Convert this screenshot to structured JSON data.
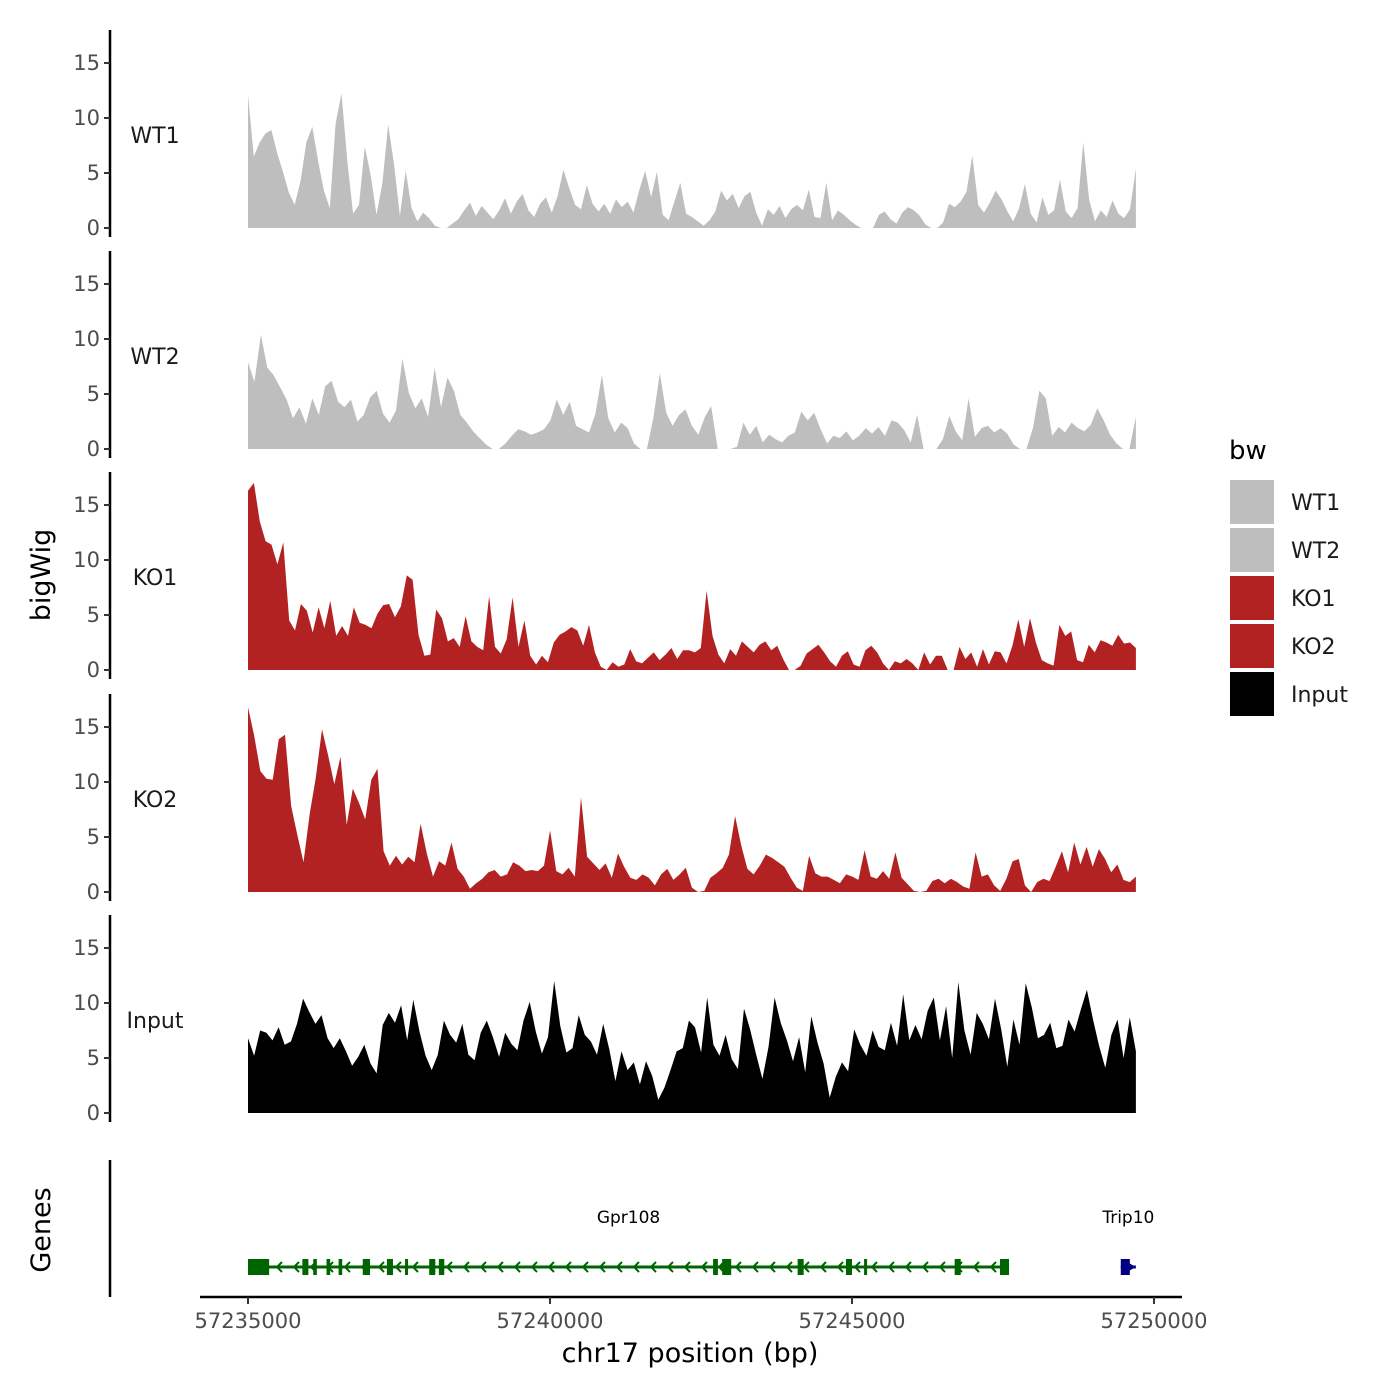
{
  "chart_data": {
    "type": "area",
    "y_axis_title": "bigWig",
    "genes_axis_title": "Genes",
    "x_axis_title": "chr17 position (bp)",
    "x_range": [
      57235000,
      57249700
    ],
    "x_ticks": [
      "57235000",
      "57240000",
      "57245000",
      "57250000"
    ],
    "x_tick_values": [
      57235000,
      57240000,
      57245000,
      57250000
    ],
    "y_range": [
      0,
      18
    ],
    "y_ticks": [
      "0",
      "5",
      "10",
      "15"
    ],
    "y_tick_values": [
      0,
      5,
      10,
      15
    ],
    "legend": {
      "title": "bw",
      "position": "right",
      "entries": [
        {
          "label": "WT1",
          "color": "#bebebe"
        },
        {
          "label": "WT2",
          "color": "#bebebe"
        },
        {
          "label": "KO1",
          "color": "#b22222"
        },
        {
          "label": "KO2",
          "color": "#b22222"
        },
        {
          "label": "Input",
          "color": "#000000"
        }
      ]
    },
    "tracks": [
      {
        "name": "WT1",
        "color": "#bebebe",
        "values": [
          12.1,
          6.5,
          7.8,
          8.6,
          8.9,
          6.8,
          5.1,
          3.2,
          2.1,
          4.3,
          7.8,
          9.2,
          6.1,
          3.4,
          1.8,
          9.5,
          12.2,
          6.1,
          1.3,
          2.1,
          7.4,
          4.8,
          1.2,
          4.1,
          9.4,
          5.8,
          1.1,
          5.2,
          1.8,
          0.6,
          1.4,
          0.9,
          0.2,
          0,
          0,
          0.4,
          0.8,
          1.6,
          2.3,
          1.1,
          2.0,
          1.4,
          0.8,
          1.6,
          2.7,
          1.3,
          2.4,
          3.1,
          1.6,
          1.0,
          2.2,
          2.8,
          1.4,
          2.9,
          5.3,
          3.6,
          2.1,
          1.7,
          3.9,
          2.2,
          1.5,
          2.2,
          1.3,
          2.6,
          1.9,
          2.4,
          1.4,
          3.5,
          5.2,
          2.8,
          5.1,
          1.2,
          0.7,
          2.4,
          4.1,
          1.3,
          1.0,
          0.6,
          0.2,
          0.7,
          1.5,
          3.4,
          2.5,
          3.1,
          1.8,
          2.9,
          3.3,
          1.4,
          0.2,
          1.7,
          1.2,
          2.0,
          0.9,
          1.7,
          2.1,
          1.6,
          3.5,
          1.0,
          0.9,
          4.1,
          0.7,
          1.6,
          1.2,
          0.7,
          0.3,
          0,
          0,
          0,
          1.2,
          1.5,
          0.8,
          0.4,
          1.4,
          1.9,
          1.6,
          1.1,
          0.3,
          0,
          0,
          0.5,
          2.2,
          1.9,
          2.4,
          3.3,
          6.6,
          2.1,
          1.4,
          2.3,
          3.4,
          2.6,
          1.5,
          0.6,
          1.8,
          4.0,
          1.3,
          0.5,
          2.8,
          1.2,
          1.6,
          4.4,
          1.5,
          0.9,
          1.8,
          7.8,
          2.6,
          0.6,
          1.6,
          1.0,
          2.5,
          1.3,
          0.9,
          1.7,
          5.4
        ]
      },
      {
        "name": "WT2",
        "color": "#bebebe",
        "values": [
          7.9,
          6.1,
          10.4,
          7.4,
          6.7,
          5.6,
          4.5,
          2.8,
          3.8,
          2.3,
          4.6,
          3.1,
          5.7,
          6.2,
          4.3,
          3.8,
          4.5,
          2.5,
          3.1,
          4.7,
          5.3,
          3.2,
          2.4,
          3.5,
          8.2,
          5.1,
          3.7,
          4.6,
          2.9,
          7.4,
          3.8,
          6.5,
          5.3,
          3.1,
          2.4,
          1.6,
          1.0,
          0.4,
          0,
          0,
          0.5,
          1.2,
          1.8,
          1.6,
          1.3,
          1.5,
          1.8,
          2.6,
          4.5,
          3.1,
          4.3,
          2.1,
          1.8,
          1.5,
          3.2,
          6.7,
          2.8,
          1.5,
          2.4,
          1.9,
          0.5,
          0,
          0,
          2.8,
          6.9,
          3.3,
          2.1,
          3.1,
          3.6,
          2.1,
          1.3,
          2.9,
          3.9,
          0,
          0,
          0,
          0.2,
          2.4,
          1.3,
          2.1,
          0.6,
          1.3,
          0.9,
          0.6,
          1.2,
          1.5,
          3.4,
          2.6,
          3.3,
          1.8,
          0.5,
          1.2,
          1.0,
          1.6,
          0.8,
          1.2,
          1.9,
          1.4,
          2.0,
          1.2,
          2.6,
          2.4,
          1.7,
          0.6,
          3.1,
          0,
          0,
          0,
          0.9,
          3.0,
          1.6,
          0.8,
          4.6,
          1.1,
          1.9,
          2.1,
          1.5,
          1.9,
          1.4,
          0.4,
          0,
          0,
          1.9,
          5.3,
          4.6,
          1.2,
          2.0,
          1.5,
          2.4,
          1.9,
          1.6,
          2.2,
          3.7,
          2.6,
          1.3,
          0.5,
          0,
          0,
          2.9
        ]
      },
      {
        "name": "KO1",
        "color": "#b22222",
        "values": [
          16.3,
          17.0,
          13.5,
          11.7,
          11.4,
          9.6,
          11.6,
          4.5,
          3.6,
          6.0,
          5.4,
          3.4,
          5.7,
          3.8,
          6.3,
          3.1,
          4.0,
          3.1,
          5.7,
          4.3,
          4.1,
          3.8,
          5.1,
          5.9,
          6.0,
          4.8,
          5.8,
          8.6,
          8.2,
          3.2,
          1.3,
          1.4,
          5.5,
          4.7,
          2.6,
          2.9,
          2.1,
          4.9,
          2.6,
          2.1,
          1.8,
          6.7,
          2.1,
          1.5,
          2.8,
          6.6,
          2.1,
          4.5,
          1.3,
          0.5,
          1.3,
          0.7,
          2.5,
          3.2,
          3.5,
          3.9,
          3.6,
          2.2,
          4.1,
          1.6,
          0.3,
          0,
          0.7,
          0.3,
          0.5,
          1.9,
          0.8,
          0.6,
          1.1,
          1.6,
          0.9,
          1.4,
          2.0,
          1.0,
          1.8,
          1.8,
          1.6,
          2.0,
          7.2,
          3.1,
          1.4,
          0.6,
          1.9,
          1.3,
          2.6,
          2.1,
          1.6,
          2.3,
          2.6,
          1.8,
          2.2,
          1.0,
          0,
          0,
          0.4,
          1.5,
          1.9,
          2.3,
          1.6,
          0.8,
          0.3,
          1.3,
          1.7,
          0.5,
          0.3,
          1.8,
          2.2,
          1.6,
          0.6,
          0,
          0.8,
          0.6,
          1.0,
          0.6,
          0,
          1.6,
          0.5,
          1.3,
          1.3,
          0,
          0,
          2.1,
          1.0,
          1.6,
          0.3,
          1.9,
          0.5,
          1.7,
          1.6,
          0.6,
          2.2,
          4.6,
          2.1,
          4.7,
          2.5,
          0.9,
          0.6,
          0.4,
          4.1,
          3.1,
          3.5,
          0.9,
          0.7,
          2.3,
          1.6,
          2.7,
          2.5,
          2.2,
          3.2,
          2.4,
          2.5,
          2.0
        ]
      },
      {
        "name": "KO2",
        "color": "#b22222",
        "values": [
          16.8,
          14.2,
          11.0,
          10.3,
          10.2,
          13.9,
          14.3,
          7.8,
          5.2,
          2.7,
          7.1,
          10.4,
          14.8,
          12.4,
          9.8,
          12.3,
          6.1,
          9.4,
          8.1,
          6.6,
          10.2,
          11.2,
          3.7,
          2.4,
          3.3,
          2.5,
          3.2,
          2.7,
          6.2,
          3.5,
          1.4,
          2.8,
          2.4,
          4.5,
          2.1,
          1.4,
          0.3,
          0.8,
          1.2,
          1.8,
          2.0,
          1.4,
          1.6,
          2.7,
          2.4,
          1.9,
          2.0,
          1.9,
          2.4,
          5.6,
          1.9,
          1.6,
          2.2,
          1.4,
          8.6,
          3.2,
          2.6,
          2.0,
          2.6,
          1.3,
          3.5,
          2.3,
          1.3,
          1.1,
          1.6,
          1.3,
          0.6,
          1.6,
          2.1,
          1.1,
          1.6,
          2.2,
          0.4,
          0,
          0.1,
          1.3,
          1.7,
          2.2,
          3.4,
          6.9,
          4.2,
          2.1,
          1.6,
          2.4,
          3.4,
          3.1,
          2.7,
          2.3,
          1.3,
          0.4,
          0.1,
          3.3,
          1.7,
          1.4,
          1.4,
          1.1,
          0.8,
          1.6,
          1.4,
          1.1,
          3.8,
          1.4,
          1.2,
          1.9,
          1.2,
          3.6,
          1.3,
          0.7,
          0.1,
          0,
          0.1,
          1.0,
          1.2,
          0.8,
          1.2,
          0.9,
          0.5,
          0.3,
          3.6,
          1.4,
          1.6,
          0.6,
          0.1,
          1.2,
          2.8,
          3.0,
          0.6,
          0,
          0.9,
          1.2,
          1.0,
          2.3,
          3.7,
          1.8,
          4.5,
          2.5,
          4.1,
          2.3,
          3.9,
          3.0,
          1.8,
          2.5,
          1.1,
          0.9,
          1.4
        ]
      },
      {
        "name": "Input",
        "color": "#000000",
        "values": [
          6.8,
          5.2,
          7.5,
          7.3,
          6.6,
          7.8,
          6.2,
          6.5,
          8.1,
          10.4,
          9.2,
          8.1,
          8.9,
          6.8,
          5.9,
          6.8,
          5.6,
          4.3,
          5.1,
          6.2,
          4.5,
          3.6,
          8.0,
          9.1,
          8.2,
          9.8,
          6.6,
          10.3,
          7.4,
          5.2,
          3.9,
          5.3,
          8.4,
          7.1,
          6.4,
          8.1,
          5.3,
          4.8,
          7.3,
          8.4,
          6.9,
          5.1,
          7.3,
          6.3,
          5.7,
          8.4,
          10.1,
          7.4,
          5.4,
          6.9,
          12.0,
          7.9,
          5.5,
          5.9,
          8.9,
          7.1,
          6.5,
          5.3,
          8.1,
          5.8,
          2.9,
          5.6,
          3.9,
          4.6,
          2.6,
          4.7,
          3.4,
          1.2,
          2.3,
          3.9,
          5.6,
          5.9,
          8.4,
          7.8,
          5.5,
          10.5,
          6.2,
          5.2,
          7.1,
          4.9,
          4.0,
          9.5,
          7.6,
          5.3,
          3.1,
          6.0,
          10.5,
          8.2,
          6.6,
          4.7,
          6.9,
          3.7,
          8.8,
          6.4,
          4.5,
          1.4,
          3.3,
          4.6,
          3.8,
          7.6,
          6.2,
          5.2,
          7.5,
          6.0,
          5.7,
          8.2,
          6.1,
          10.8,
          6.6,
          8.0,
          6.7,
          9.3,
          10.5,
          6.6,
          9.7,
          5.0,
          11.9,
          7.5,
          5.3,
          9.1,
          8.1,
          6.7,
          10.4,
          7.6,
          4.2,
          8.5,
          6.2,
          11.8,
          9.6,
          6.8,
          7.1,
          8.2,
          5.9,
          6.1,
          8.5,
          7.4,
          9.4,
          11.2,
          8.5,
          6.1,
          4.1,
          7.1,
          8.5,
          5.0,
          8.7,
          5.6
        ]
      }
    ],
    "genes": [
      {
        "name": "Gpr108",
        "start": 57235000,
        "end": 57247600,
        "strand": "-",
        "color": "#006400",
        "exons": [
          [
            57235000,
            57235350
          ],
          [
            57235900,
            57236000
          ],
          [
            57236080,
            57236140
          ],
          [
            57236300,
            57236360
          ],
          [
            57236500,
            57236560
          ],
          [
            57236900,
            57237020
          ],
          [
            57237300,
            57237400
          ],
          [
            57237600,
            57237650
          ],
          [
            57238000,
            57238100
          ],
          [
            57238160,
            57238250
          ],
          [
            57242700,
            57242780
          ],
          [
            57242850,
            57243000
          ],
          [
            57244100,
            57244200
          ],
          [
            57244900,
            57245000
          ],
          [
            57245200,
            57245250
          ],
          [
            57246700,
            57246800
          ],
          [
            57247450,
            57247600
          ]
        ]
      },
      {
        "name": "Trip10",
        "start": 57249450,
        "end": 57249700,
        "strand": "+",
        "color": "#000080",
        "exons": [
          [
            57249450,
            57249600
          ]
        ]
      }
    ]
  }
}
